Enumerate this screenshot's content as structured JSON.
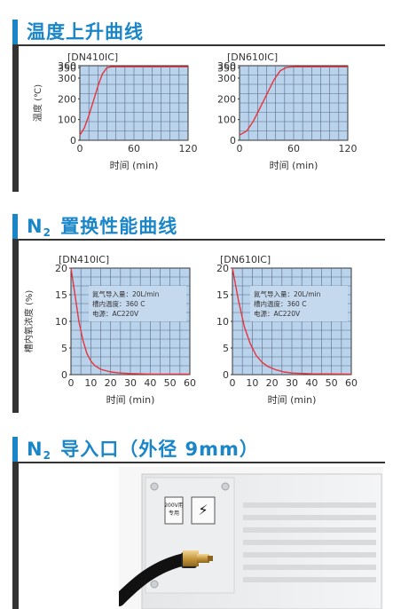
{
  "sections": [
    {
      "title": "温度上升曲线"
    },
    {
      "title_prefix": "N",
      "title_sub": "2",
      "title_rest": "置换性能曲线"
    },
    {
      "title_prefix": "N",
      "title_sub": "2",
      "title_rest": "导入口（外径 9mm）"
    }
  ],
  "chart_data": [
    {
      "type": "line",
      "model": "[DN410IC]",
      "ylabel": "温度 (℃)",
      "xlabel": "时间 (min)",
      "x_ticks": [
        0,
        60,
        120
      ],
      "y_ticks": [
        0,
        100,
        200,
        300,
        350,
        360
      ],
      "xlim": [
        0,
        120
      ],
      "ylim": [
        0,
        360
      ],
      "grid": true,
      "series": [
        {
          "x": [
            0,
            5,
            10,
            15,
            20,
            25,
            30,
            35,
            40,
            60,
            90,
            120
          ],
          "y": [
            25,
            60,
            120,
            190,
            260,
            320,
            350,
            355,
            355,
            355,
            355,
            355
          ]
        }
      ]
    },
    {
      "type": "line",
      "model": "[DN610IC]",
      "ylabel": "",
      "xlabel": "时间 (min)",
      "x_ticks": [
        0,
        60,
        120
      ],
      "y_ticks": [
        0,
        100,
        200,
        300,
        350,
        360
      ],
      "xlim": [
        0,
        120
      ],
      "ylim": [
        0,
        360
      ],
      "grid": true,
      "series": [
        {
          "x": [
            0,
            8,
            15,
            22,
            30,
            38,
            45,
            52,
            60,
            90,
            120
          ],
          "y": [
            25,
            45,
            90,
            150,
            220,
            290,
            335,
            352,
            355,
            355,
            355
          ]
        }
      ]
    },
    {
      "type": "line",
      "model": "[DN410IC]",
      "ylabel": "槽内氧浓度 (%)",
      "xlabel": "时间 (min)",
      "x_ticks": [
        0,
        10,
        20,
        30,
        40,
        50,
        60
      ],
      "y_ticks": [
        0,
        5,
        10,
        15,
        20
      ],
      "xlim": [
        0,
        60
      ],
      "ylim": [
        0,
        20
      ],
      "grid": true,
      "annotation": [
        "氮气导入量：20L/min",
        "槽内温度：360 C",
        "电源：AC220V"
      ],
      "series": [
        {
          "x": [
            0,
            2,
            4,
            6,
            8,
            10,
            12,
            15,
            20,
            25,
            30,
            40,
            60
          ],
          "y": [
            20,
            15,
            10,
            6.5,
            4,
            2.6,
            1.7,
            1.0,
            0.5,
            0.3,
            0.2,
            0.1,
            0.1
          ]
        }
      ]
    },
    {
      "type": "line",
      "model": "[DN610IC]",
      "ylabel": "",
      "xlabel": "时间 (min)",
      "x_ticks": [
        0,
        10,
        20,
        30,
        40,
        50,
        60
      ],
      "y_ticks": [
        0,
        5,
        10,
        15,
        20
      ],
      "xlim": [
        0,
        60
      ],
      "ylim": [
        0,
        20
      ],
      "grid": true,
      "annotation": [
        "氮气导入量：20L/min",
        "槽内温度：360 C",
        "电源：AC220V"
      ],
      "series": [
        {
          "x": [
            0,
            3,
            6,
            9,
            12,
            15,
            18,
            22,
            26,
            30,
            40,
            60
          ],
          "y": [
            20,
            14,
            9,
            5.8,
            3.6,
            2.3,
            1.5,
            0.9,
            0.5,
            0.3,
            0.15,
            0.1
          ]
        }
      ]
    }
  ],
  "photo": {
    "label_lines": [
      "200V用",
      "专用"
    ],
    "warning_symbol": "⚡"
  },
  "colors": {
    "accent": "#1a86c8",
    "plot_bg": "#b9d3ec",
    "curve": "#e8343b",
    "grid": "#5a6a80"
  }
}
